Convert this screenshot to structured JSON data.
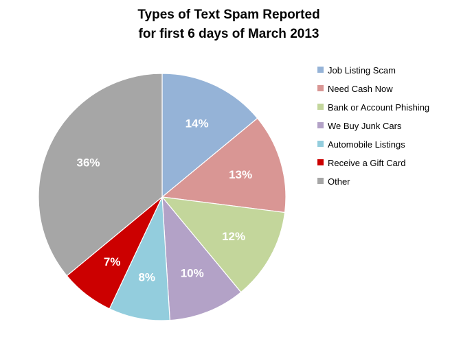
{
  "chart_data": {
    "type": "pie",
    "title": "Types of Text Spam Reported for first 6 days of March 2013",
    "title_lines": [
      "Types of Text Spam Reported",
      "for first 6 days of March 2013"
    ],
    "legend_position": "right",
    "slices": [
      {
        "name": "Job Listing Scam",
        "value": 14,
        "label": "14%",
        "color": "#95B3D7"
      },
      {
        "name": "Need Cash Now",
        "value": 13,
        "label": "13%",
        "color": "#D99694"
      },
      {
        "name": "Bank or Account Phishing",
        "value": 12,
        "label": "12%",
        "color": "#C3D69B"
      },
      {
        "name": "We Buy Junk Cars",
        "value": 10,
        "label": "10%",
        "color": "#B3A2C7"
      },
      {
        "name": "Automobile Listings",
        "value": 8,
        "label": "8%",
        "color": "#93CDDD"
      },
      {
        "name": "Receive a Gift Card",
        "value": 7,
        "label": "7%",
        "color": "#CC0000"
      },
      {
        "name": "Other",
        "value": 36,
        "label": "36%",
        "color": "#A6A6A6"
      }
    ]
  }
}
